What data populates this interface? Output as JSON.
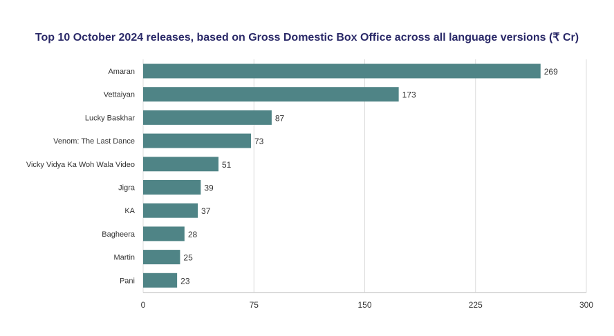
{
  "chart_data": {
    "type": "bar",
    "orientation": "horizontal",
    "title": "Top 10 October 2024 releases, based on Gross Domestic Box Office across all language versions (₹ Cr)",
    "categories": [
      "Amaran",
      "Vettaiyan",
      "Lucky Baskhar",
      "Venom: The Last Dance",
      "Vicky Vidya Ka Woh Wala Video",
      "Jigra",
      "KA",
      "Bagheera",
      "Martin",
      "Pani"
    ],
    "values": [
      269,
      173,
      87,
      73,
      51,
      39,
      37,
      28,
      25,
      23
    ],
    "xlim": [
      0,
      300
    ],
    "xticks": [
      0,
      75,
      150,
      225,
      300
    ],
    "xlabel": "",
    "ylabel": "",
    "grid": true,
    "bar_color": "#4f8486",
    "title_color": "#2a2968"
  }
}
